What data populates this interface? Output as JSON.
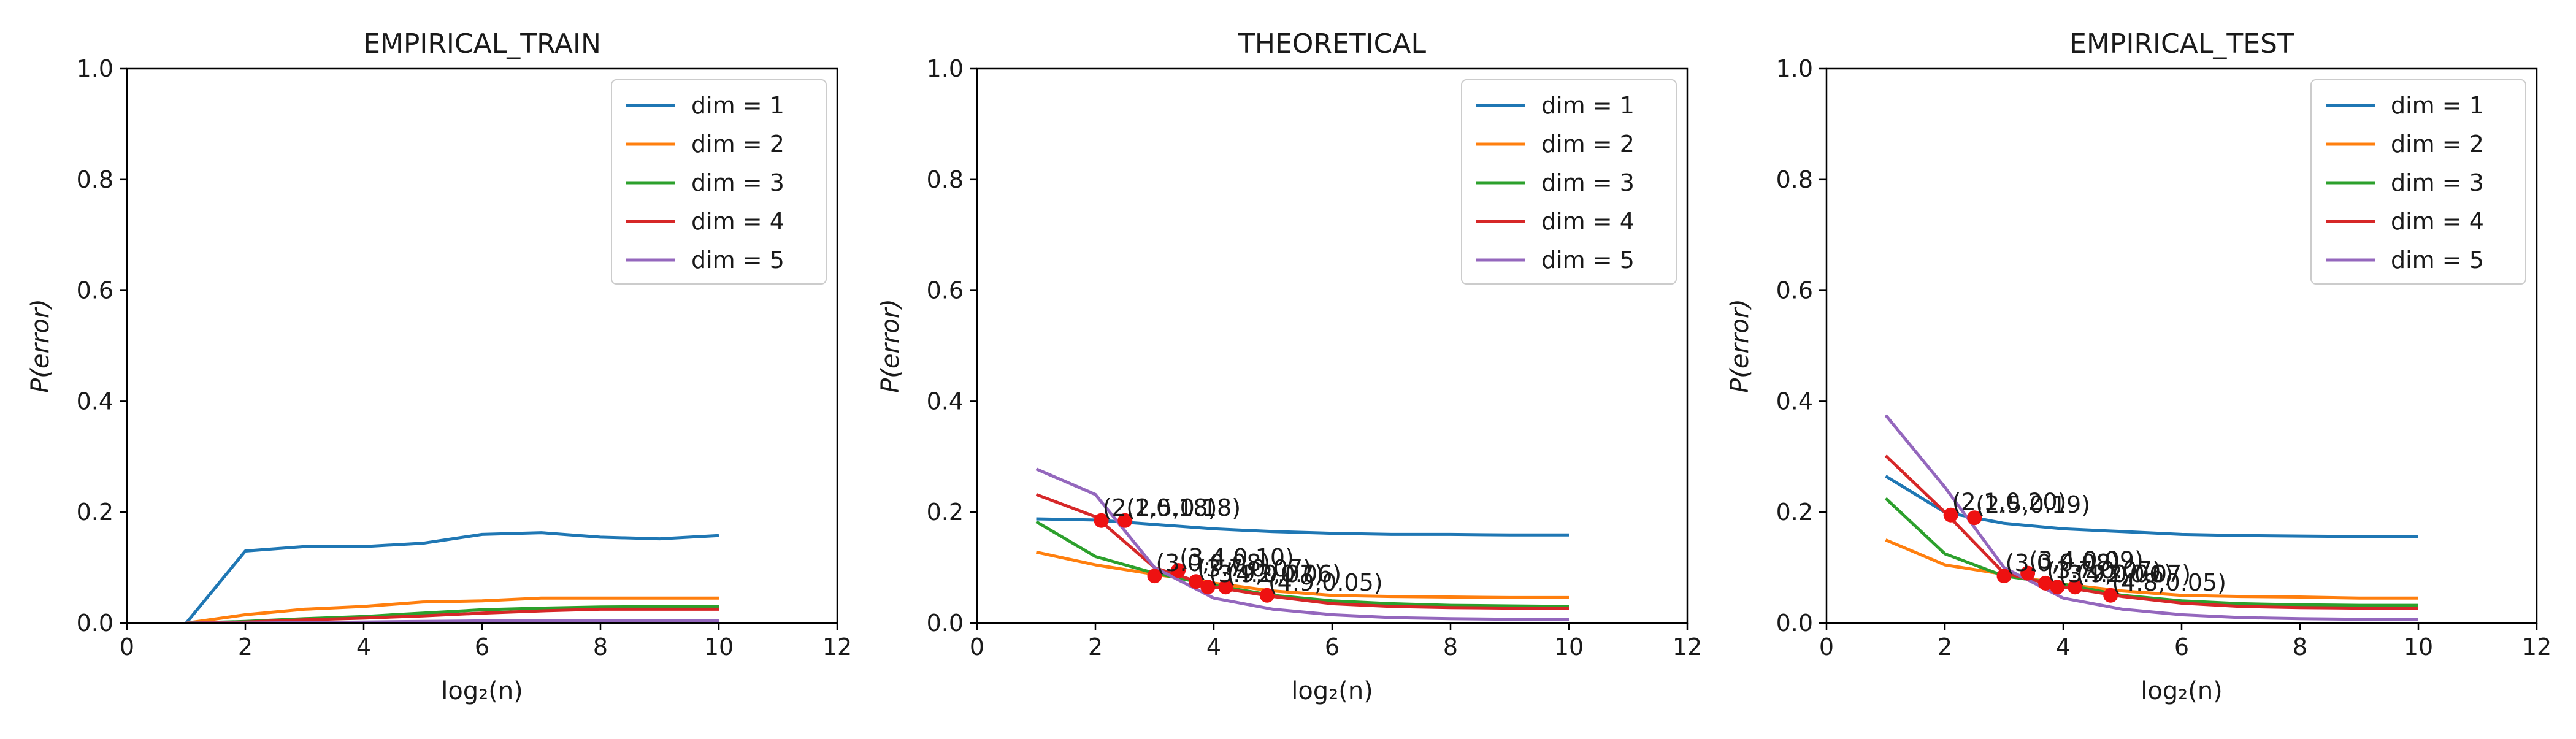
{
  "chart_data": [
    {
      "type": "line",
      "title": "EMPIRICAL_TRAIN",
      "xlabel": "log₂(n)",
      "ylabel": "P(error)",
      "xlim": [
        0,
        12
      ],
      "ylim": [
        0.0,
        1.0
      ],
      "x_ticks": [
        0,
        2,
        4,
        6,
        8,
        10,
        12
      ],
      "y_ticks": [
        0.0,
        0.2,
        0.4,
        0.6,
        0.8,
        1.0
      ],
      "grid": false,
      "legend": "top-right",
      "series": [
        {
          "name": "dim = 1",
          "color": "#1f77b4",
          "x": [
            1,
            2,
            3,
            4,
            5,
            6,
            7,
            8,
            9,
            10
          ],
          "values": [
            0.0,
            0.13,
            0.138,
            0.138,
            0.144,
            0.16,
            0.163,
            0.155,
            0.152,
            0.158
          ]
        },
        {
          "name": "dim = 2",
          "color": "#ff7f0e",
          "x": [
            1,
            2,
            3,
            4,
            5,
            6,
            7,
            8,
            9,
            10
          ],
          "values": [
            0.0,
            0.015,
            0.025,
            0.03,
            0.038,
            0.04,
            0.045,
            0.045,
            0.045,
            0.045
          ]
        },
        {
          "name": "dim = 3",
          "color": "#2ca02c",
          "x": [
            1,
            2,
            3,
            4,
            5,
            6,
            7,
            8,
            9,
            10
          ],
          "values": [
            0.0,
            0.003,
            0.008,
            0.012,
            0.018,
            0.024,
            0.027,
            0.029,
            0.03,
            0.03
          ]
        },
        {
          "name": "dim = 4",
          "color": "#d62728",
          "x": [
            1,
            2,
            3,
            4,
            5,
            6,
            7,
            8,
            9,
            10
          ],
          "values": [
            0.0,
            0.002,
            0.006,
            0.009,
            0.013,
            0.018,
            0.022,
            0.025,
            0.025,
            0.025
          ]
        },
        {
          "name": "dim = 5",
          "color": "#9467bd",
          "x": [
            1,
            2,
            3,
            4,
            5,
            6,
            7,
            8,
            9,
            10
          ],
          "values": [
            0.0,
            0.0,
            0.001,
            0.002,
            0.003,
            0.004,
            0.005,
            0.005,
            0.005,
            0.005
          ]
        }
      ],
      "points": []
    },
    {
      "type": "line",
      "title": "THEORETICAL",
      "xlabel": "log₂(n)",
      "ylabel": "P(error)",
      "xlim": [
        0,
        12
      ],
      "ylim": [
        0.0,
        1.0
      ],
      "x_ticks": [
        0,
        2,
        4,
        6,
        8,
        10,
        12
      ],
      "y_ticks": [
        0.0,
        0.2,
        0.4,
        0.6,
        0.8,
        1.0
      ],
      "grid": false,
      "legend": "top-right",
      "series": [
        {
          "name": "dim = 1",
          "color": "#1f77b4",
          "x": [
            1,
            2,
            3,
            4,
            5,
            6,
            7,
            8,
            9,
            10
          ],
          "values": [
            0.188,
            0.186,
            0.178,
            0.17,
            0.165,
            0.162,
            0.16,
            0.16,
            0.159,
            0.159
          ]
        },
        {
          "name": "dim = 2",
          "color": "#ff7f0e",
          "x": [
            1,
            2,
            3,
            4,
            5,
            6,
            7,
            8,
            9,
            10
          ],
          "values": [
            0.128,
            0.105,
            0.088,
            0.072,
            0.058,
            0.05,
            0.048,
            0.047,
            0.046,
            0.046
          ]
        },
        {
          "name": "dim = 3",
          "color": "#2ca02c",
          "x": [
            1,
            2,
            3,
            4,
            5,
            6,
            7,
            8,
            9,
            10
          ],
          "values": [
            0.183,
            0.12,
            0.09,
            0.068,
            0.05,
            0.04,
            0.035,
            0.032,
            0.031,
            0.03
          ]
        },
        {
          "name": "dim = 4",
          "color": "#d62728",
          "x": [
            1,
            2,
            3,
            4,
            5,
            6,
            7,
            8,
            9,
            10
          ],
          "values": [
            0.232,
            0.192,
            0.1,
            0.065,
            0.048,
            0.035,
            0.03,
            0.028,
            0.027,
            0.027
          ]
        },
        {
          "name": "dim = 5",
          "color": "#9467bd",
          "x": [
            1,
            2,
            3,
            4,
            5,
            6,
            7,
            8,
            9,
            10
          ],
          "values": [
            0.278,
            0.232,
            0.1,
            0.045,
            0.025,
            0.015,
            0.01,
            0.008,
            0.007,
            0.007
          ]
        }
      ],
      "points": [
        {
          "x": 2.1,
          "y": 0.185,
          "label": "(2.1,0.18)"
        },
        {
          "x": 2.5,
          "y": 0.185,
          "label": "(2.5,0.18)"
        },
        {
          "x": 3.0,
          "y": 0.085,
          "label": "(3.0,0.08)"
        },
        {
          "x": 3.4,
          "y": 0.095,
          "label": "(3.4,0.10)"
        },
        {
          "x": 3.7,
          "y": 0.075,
          "label": "(3.7,0.07)"
        },
        {
          "x": 3.9,
          "y": 0.065,
          "label": "(3.9,0.07)"
        },
        {
          "x": 4.2,
          "y": 0.065,
          "label": "(4.2,0.06)"
        },
        {
          "x": 4.9,
          "y": 0.05,
          "label": "(4.9,0.05)"
        }
      ]
    },
    {
      "type": "line",
      "title": "EMPIRICAL_TEST",
      "xlabel": "log₂(n)",
      "ylabel": "P(error)",
      "xlim": [
        0,
        12
      ],
      "ylim": [
        0.0,
        1.0
      ],
      "x_ticks": [
        0,
        2,
        4,
        6,
        8,
        10,
        12
      ],
      "y_ticks": [
        0.0,
        0.2,
        0.4,
        0.6,
        0.8,
        1.0
      ],
      "grid": false,
      "legend": "top-right",
      "series": [
        {
          "name": "dim = 1",
          "color": "#1f77b4",
          "x": [
            1,
            2,
            3,
            4,
            5,
            6,
            7,
            8,
            9,
            10
          ],
          "values": [
            0.265,
            0.2,
            0.18,
            0.17,
            0.165,
            0.16,
            0.158,
            0.157,
            0.156,
            0.156
          ]
        },
        {
          "name": "dim = 2",
          "color": "#ff7f0e",
          "x": [
            1,
            2,
            3,
            4,
            5,
            6,
            7,
            8,
            9,
            10
          ],
          "values": [
            0.15,
            0.105,
            0.088,
            0.07,
            0.058,
            0.05,
            0.048,
            0.047,
            0.045,
            0.045
          ]
        },
        {
          "name": "dim = 3",
          "color": "#2ca02c",
          "x": [
            1,
            2,
            3,
            4,
            5,
            6,
            7,
            8,
            9,
            10
          ],
          "values": [
            0.225,
            0.125,
            0.085,
            0.07,
            0.05,
            0.04,
            0.035,
            0.033,
            0.032,
            0.032
          ]
        },
        {
          "name": "dim = 4",
          "color": "#d62728",
          "x": [
            1,
            2,
            3,
            4,
            5,
            6,
            7,
            8,
            9,
            10
          ],
          "values": [
            0.302,
            0.2,
            0.09,
            0.065,
            0.048,
            0.036,
            0.03,
            0.028,
            0.027,
            0.027
          ]
        },
        {
          "name": "dim = 5",
          "color": "#9467bd",
          "x": [
            1,
            2,
            3,
            4,
            5,
            6,
            7,
            8,
            9,
            10
          ],
          "values": [
            0.375,
            0.245,
            0.1,
            0.045,
            0.025,
            0.015,
            0.01,
            0.008,
            0.007,
            0.007
          ]
        }
      ],
      "points": [
        {
          "x": 2.1,
          "y": 0.195,
          "label": "(2.1,0.20)"
        },
        {
          "x": 2.5,
          "y": 0.19,
          "label": "(2.5,0.19)"
        },
        {
          "x": 3.0,
          "y": 0.085,
          "label": "(3.0,0.08)"
        },
        {
          "x": 3.4,
          "y": 0.09,
          "label": "(3.4,0.09)"
        },
        {
          "x": 3.7,
          "y": 0.072,
          "label": "(3.7,0.07)"
        },
        {
          "x": 3.9,
          "y": 0.065,
          "label": "(3.9,0.06)"
        },
        {
          "x": 4.2,
          "y": 0.065,
          "label": "(4.2,0.07)"
        },
        {
          "x": 4.8,
          "y": 0.05,
          "label": "(4.8,0.05)"
        }
      ]
    }
  ]
}
